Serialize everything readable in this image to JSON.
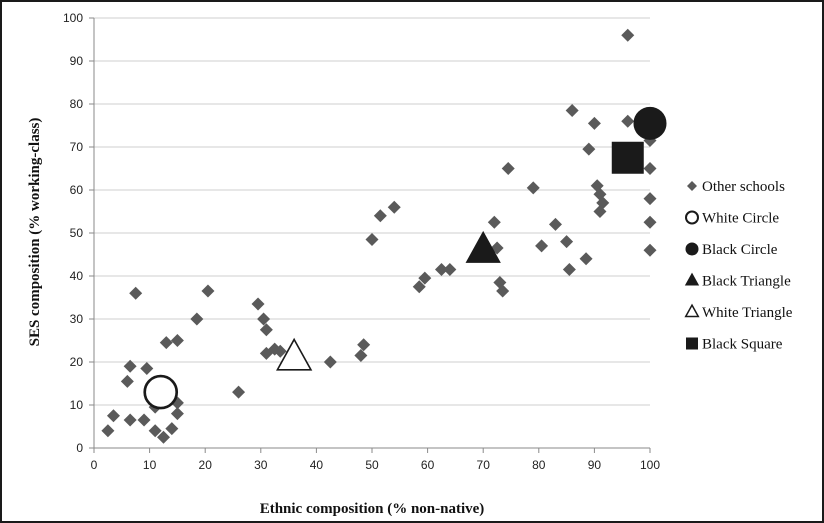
{
  "chart_data": {
    "type": "scatter",
    "xlabel": "Ethnic composition (% non-native)",
    "ylabel": "SES composition (% working-class)",
    "xlim": [
      0,
      100
    ],
    "ylim": [
      0,
      100
    ],
    "x_ticks": [
      "0",
      "10",
      "20",
      "30",
      "40",
      "50",
      "60",
      "70",
      "80",
      "90",
      "100"
    ],
    "y_ticks": [
      "0",
      "10",
      "20",
      "30",
      "40",
      "50",
      "60",
      "70",
      "80",
      "90",
      "100"
    ],
    "grid": "horizontal",
    "legend_position": "right",
    "series": [
      {
        "name": "Other schools",
        "marker": "diamond",
        "color": "#5a5a5a",
        "points": [
          [
            96,
            96
          ],
          [
            86,
            78.5
          ],
          [
            96,
            76
          ],
          [
            90,
            75.5
          ],
          [
            100,
            71.5
          ],
          [
            89,
            69.5
          ],
          [
            100,
            65
          ],
          [
            74.5,
            65
          ],
          [
            90.5,
            61
          ],
          [
            79,
            60.5
          ],
          [
            91,
            59
          ],
          [
            100,
            58
          ],
          [
            91.5,
            57
          ],
          [
            54,
            56
          ],
          [
            91,
            55
          ],
          [
            51.5,
            54
          ],
          [
            72,
            52.5
          ],
          [
            83,
            52
          ],
          [
            100,
            52.5
          ],
          [
            50,
            48.5
          ],
          [
            85,
            48
          ],
          [
            80.5,
            47
          ],
          [
            72.5,
            46.5
          ],
          [
            100,
            46
          ],
          [
            88.5,
            44
          ],
          [
            85.5,
            41.5
          ],
          [
            62.5,
            41.5
          ],
          [
            64,
            41.5
          ],
          [
            59.5,
            39.5
          ],
          [
            73,
            38.5
          ],
          [
            58.5,
            37.5
          ],
          [
            73.5,
            36.5
          ],
          [
            20.5,
            36.5
          ],
          [
            7.5,
            36
          ],
          [
            29.5,
            33.5
          ],
          [
            18.5,
            30
          ],
          [
            30.5,
            30
          ],
          [
            31,
            27.5
          ],
          [
            13,
            24.5
          ],
          [
            15,
            25
          ],
          [
            48.5,
            24
          ],
          [
            32.5,
            23
          ],
          [
            31,
            22
          ],
          [
            33.5,
            22.5
          ],
          [
            48,
            21.5
          ],
          [
            42.5,
            20
          ],
          [
            6.5,
            19
          ],
          [
            9.5,
            18.5
          ],
          [
            6,
            15.5
          ],
          [
            26,
            13
          ],
          [
            10.5,
            12
          ],
          [
            15,
            10.5
          ],
          [
            11,
            9.5
          ],
          [
            15,
            8
          ],
          [
            3.5,
            7.5
          ],
          [
            6.5,
            6.5
          ],
          [
            9,
            6.5
          ],
          [
            14,
            4.5
          ],
          [
            2.5,
            4
          ],
          [
            11,
            4
          ],
          [
            12.5,
            2.5
          ]
        ]
      },
      {
        "name": "White Circle",
        "marker": "circle-open",
        "points": [
          [
            12,
            13
          ]
        ]
      },
      {
        "name": "Black Circle",
        "marker": "circle-filled",
        "points": [
          [
            100,
            75.5
          ]
        ]
      },
      {
        "name": "Black Triangle",
        "marker": "triangle-filled",
        "points": [
          [
            70,
            46
          ]
        ]
      },
      {
        "name": "White Triangle",
        "marker": "triangle-open",
        "points": [
          [
            36,
            21
          ]
        ]
      },
      {
        "name": "Black Square",
        "marker": "square-filled",
        "points": [
          [
            96,
            67.5
          ]
        ]
      }
    ]
  },
  "legend": [
    {
      "label": "Other schools",
      "marker": "diamond"
    },
    {
      "label": "White Circle",
      "marker": "circle-open"
    },
    {
      "label": "Black Circle",
      "marker": "circle-filled"
    },
    {
      "label": "Black Triangle",
      "marker": "triangle-filled"
    },
    {
      "label": "White Triangle",
      "marker": "triangle-open"
    },
    {
      "label": "Black Square",
      "marker": "square-filled"
    }
  ],
  "colors": {
    "marker": "#5a5a5a",
    "dark": "#1a1a1a",
    "grid": "#cfcfcf",
    "axis": "#8a8a8a"
  }
}
